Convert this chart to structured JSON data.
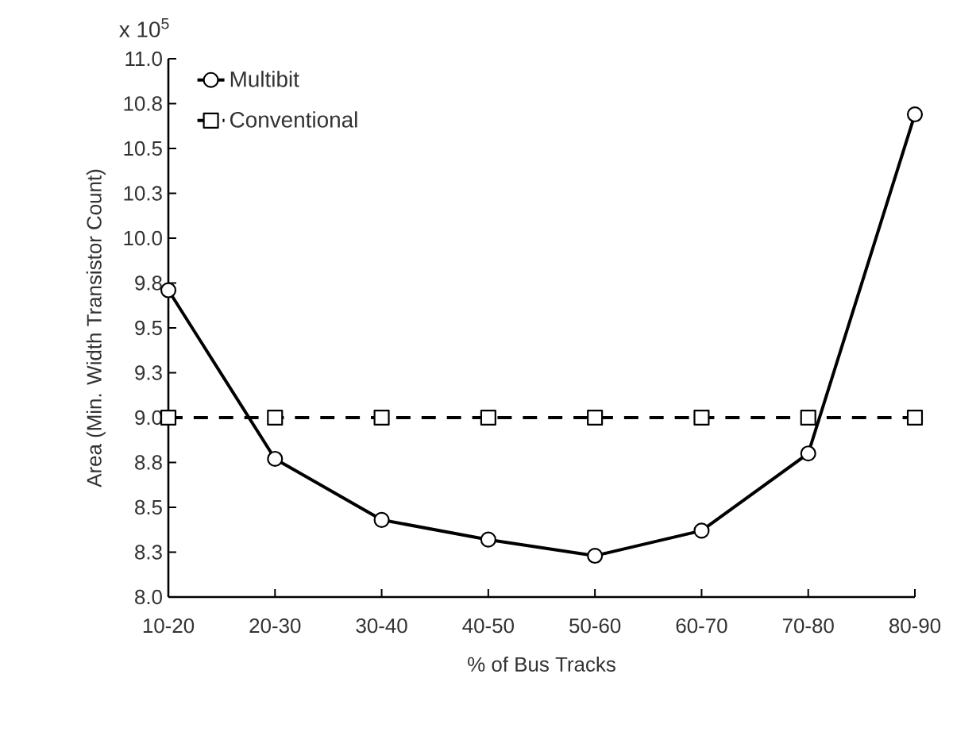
{
  "chart_data": {
    "type": "line",
    "xlabel": "% of Bus Tracks",
    "ylabel": "Area (Min. Width Transistor Count)",
    "annotations": [
      "x 10$^{5}$"
    ],
    "categories": [
      "10-20",
      "20-30",
      "30-40",
      "40-50",
      "50-60",
      "60-70",
      "70-80",
      "80-90"
    ],
    "series": [
      {
        "name": "Multibit",
        "color": "#000000",
        "marker": "circle",
        "line_style": "solid",
        "values": [
          9.71,
          8.77,
          8.43,
          8.32,
          8.23,
          8.37,
          8.8,
          10.69
        ]
      },
      {
        "name": "Conventional",
        "color": "#000000",
        "marker": "square",
        "line_style": "dashed",
        "values": [
          9.0,
          9.0,
          9.0,
          9.0,
          9.0,
          9.0,
          9.0,
          9.0
        ]
      }
    ],
    "ylim": [
      8.0,
      11.0
    ],
    "yticks": [
      {
        "value": 8.0,
        "label": "8.0"
      },
      {
        "value": 8.25,
        "label": "8.3"
      },
      {
        "value": 8.5,
        "label": "8.5"
      },
      {
        "value": 8.75,
        "label": "8.8"
      },
      {
        "value": 9.0,
        "label": "9.0"
      },
      {
        "value": 9.25,
        "label": "9.3"
      },
      {
        "value": 9.5,
        "label": "9.5"
      },
      {
        "value": 9.75,
        "label": "9.8"
      },
      {
        "value": 10.0,
        "label": "10.0"
      },
      {
        "value": 10.25,
        "label": "10.3"
      },
      {
        "value": 10.5,
        "label": "10.5"
      },
      {
        "value": 10.75,
        "label": "10.8"
      },
      {
        "value": 11.0,
        "label": "11.0"
      }
    ],
    "grid": false,
    "legend": "top left"
  }
}
